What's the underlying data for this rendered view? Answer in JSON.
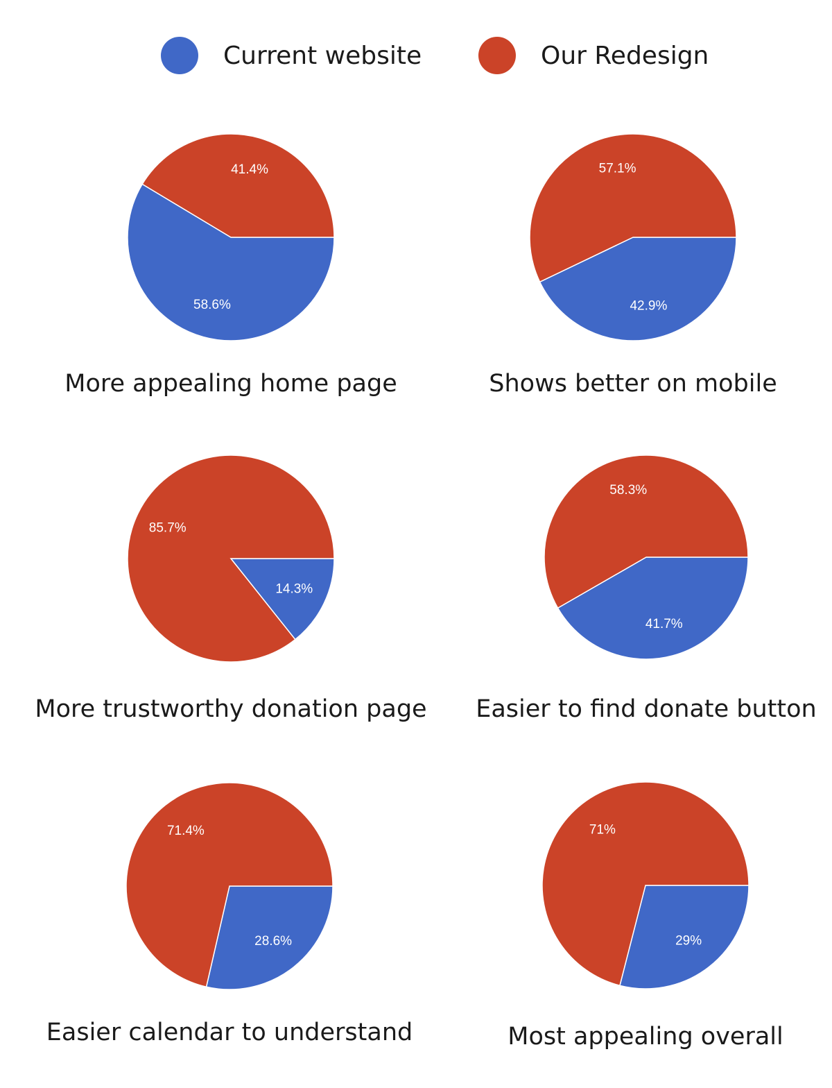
{
  "colors": {
    "current": "#4068c7",
    "redesign": "#cb4328",
    "background": "#ffffff"
  },
  "legend": [
    {
      "name": "Current website",
      "color": "#4068c7"
    },
    {
      "name": "Our Redesign",
      "color": "#cb4328"
    }
  ],
  "chart_data": [
    {
      "type": "pie",
      "title": "More appealing home page",
      "series": [
        {
          "name": "Current website",
          "value": 58.6,
          "label": "58.6%"
        },
        {
          "name": "Our Redesign",
          "value": 41.4,
          "label": "41.4%"
        }
      ]
    },
    {
      "type": "pie",
      "title": "Shows better on mobile",
      "series": [
        {
          "name": "Current website",
          "value": 42.9,
          "label": "42.9%"
        },
        {
          "name": "Our Redesign",
          "value": 57.1,
          "label": "57.1%"
        }
      ]
    },
    {
      "type": "pie",
      "title": "More trustworthy donation page",
      "series": [
        {
          "name": "Current website",
          "value": 14.3,
          "label": "14.3%"
        },
        {
          "name": "Our Redesign",
          "value": 85.7,
          "label": "85.7%"
        }
      ]
    },
    {
      "type": "pie",
      "title": "Easier to find donate button",
      "series": [
        {
          "name": "Current website",
          "value": 41.7,
          "label": "41.7%"
        },
        {
          "name": "Our Redesign",
          "value": 58.3,
          "label": "58.3%"
        }
      ]
    },
    {
      "type": "pie",
      "title": "Easier calendar to understand",
      "series": [
        {
          "name": "Current website",
          "value": 28.6,
          "label": "28.6%"
        },
        {
          "name": "Our Redesign",
          "value": 71.4,
          "label": "71.4%"
        }
      ]
    },
    {
      "type": "pie",
      "title": "Most appealing overall",
      "series": [
        {
          "name": "Current website",
          "value": 29,
          "label": "29%"
        },
        {
          "name": "Our Redesign",
          "value": 71,
          "label": "71%"
        }
      ]
    }
  ]
}
